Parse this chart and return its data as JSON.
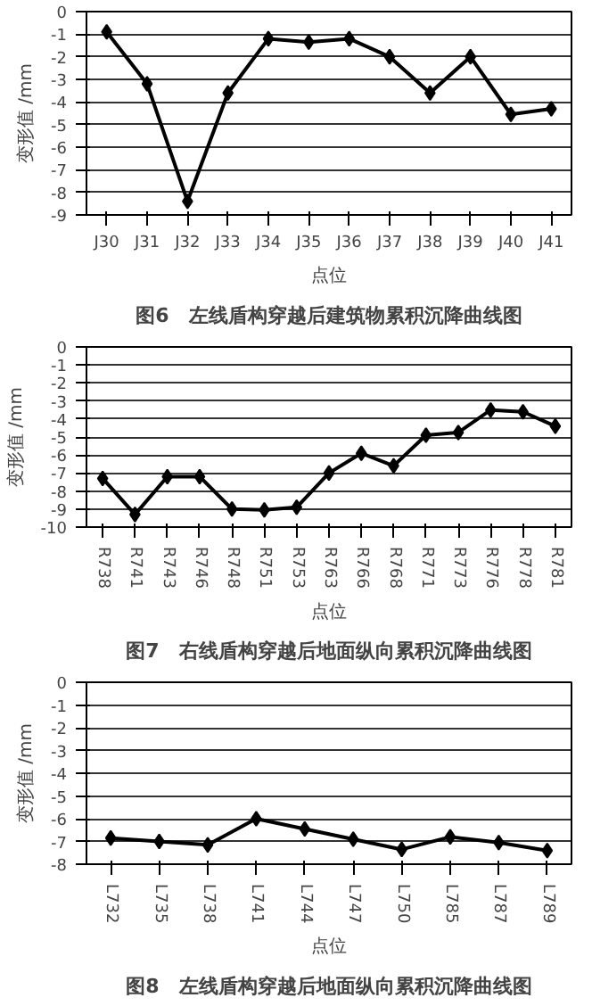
{
  "chart_data": [
    {
      "type": "line",
      "title": "图6　左线盾构穿越后建筑物累积沉降曲线图",
      "xlabel": "点位",
      "ylabel": "变形值 /mm",
      "categories": [
        "J30",
        "J31",
        "J32",
        "J33",
        "J34",
        "J35",
        "J36",
        "J37",
        "J38",
        "J39",
        "J40",
        "J41"
      ],
      "series": [
        {
          "color": "#000000",
          "values": [
            -0.9,
            -3.2,
            -8.4,
            -3.6,
            -1.2,
            -1.35,
            -1.2,
            -2.0,
            -3.6,
            -2.0,
            -4.55,
            -4.3
          ]
        }
      ],
      "ylim": [
        -9,
        0
      ],
      "yticks": [
        -9,
        -8,
        -7,
        -6,
        -5,
        -4,
        -3,
        -2,
        -1,
        0
      ],
      "grid": "y",
      "marker": "diamond",
      "line_style": "solid"
    },
    {
      "type": "line",
      "title": "图7　右线盾构穿越后地面纵向累积沉降曲线图",
      "xlabel": "点位",
      "ylabel": "变形值 /mm",
      "categories": [
        "R738",
        "R741",
        "R743",
        "R746",
        "R748",
        "R751",
        "R753",
        "R763",
        "R766",
        "R768",
        "R771",
        "R773",
        "R776",
        "R778",
        "R781"
      ],
      "series": [
        {
          "color": "#000000",
          "values": [
            -7.3,
            -9.3,
            -7.2,
            -7.2,
            -9.0,
            -9.05,
            -8.9,
            -7.0,
            -5.9,
            -6.6,
            -4.9,
            -4.75,
            -3.5,
            -3.6,
            -4.4
          ]
        }
      ],
      "ylim": [
        -10,
        0
      ],
      "yticks": [
        -10,
        -9,
        -8,
        -7,
        -6,
        -5,
        -4,
        -3,
        -2,
        -1,
        0
      ],
      "grid": "y",
      "marker": "diamond",
      "line_style": "solid"
    },
    {
      "type": "line",
      "title": "图8　左线盾构穿越后地面纵向累积沉降曲线图",
      "xlabel": "点位",
      "ylabel": "变形值 /mm",
      "categories": [
        "L732",
        "L735",
        "L738",
        "L741",
        "L744",
        "L747",
        "L750",
        "L785",
        "L787",
        "L789"
      ],
      "series": [
        {
          "color": "#000000",
          "values": [
            -6.85,
            -7.0,
            -7.15,
            -6.0,
            -6.45,
            -6.9,
            -7.35,
            -6.8,
            -7.05,
            -7.4
          ]
        }
      ],
      "ylim": [
        -8,
        0
      ],
      "yticks": [
        -8,
        -7,
        -6,
        -5,
        -4,
        -3,
        -2,
        -1,
        0
      ],
      "grid": "y",
      "marker": "diamond",
      "line_style": "solid"
    }
  ]
}
